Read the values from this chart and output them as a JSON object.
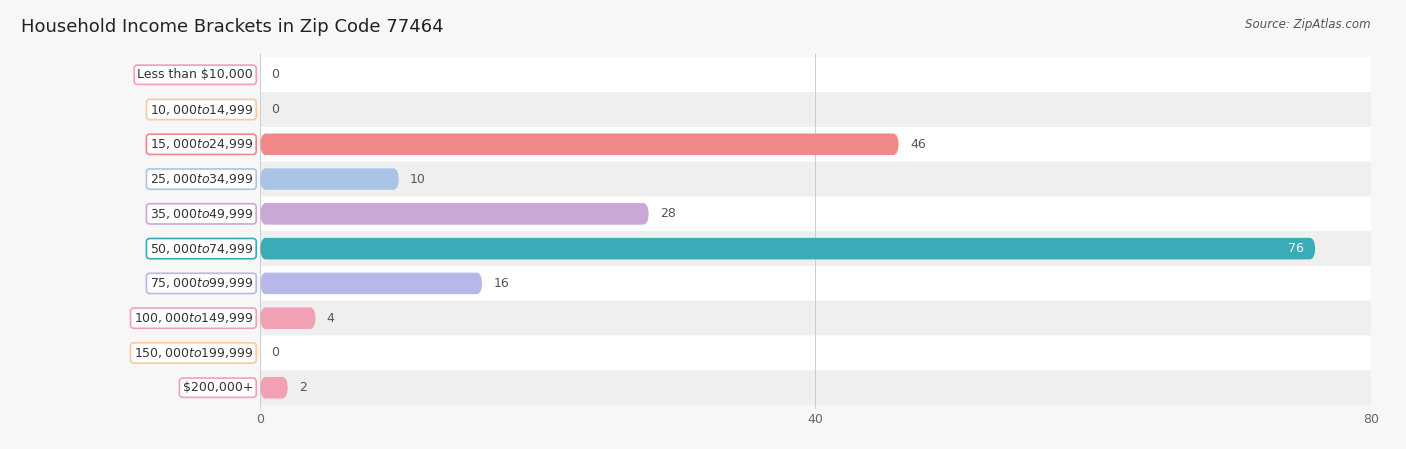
{
  "title": "Household Income Brackets in Zip Code 77464",
  "source": "Source: ZipAtlas.com",
  "categories": [
    "Less than $10,000",
    "$10,000 to $14,999",
    "$15,000 to $24,999",
    "$25,000 to $34,999",
    "$35,000 to $49,999",
    "$50,000 to $74,999",
    "$75,000 to $99,999",
    "$100,000 to $149,999",
    "$150,000 to $199,999",
    "$200,000+"
  ],
  "values": [
    0,
    0,
    46,
    10,
    28,
    76,
    16,
    4,
    0,
    2
  ],
  "bar_colors": [
    "#f2a0b4",
    "#f8c9a0",
    "#f08888",
    "#aac4e8",
    "#c9a8d8",
    "#3aacb8",
    "#b8b8e8",
    "#f2a0b4",
    "#f8c9a0",
    "#f2a0b4"
  ],
  "label_box_colors": [
    "#f2a0b4",
    "#f8c9a0",
    "#f08888",
    "#aac4e8",
    "#c9a8d8",
    "#3aacb8",
    "#b8b8e8",
    "#f2a0b4",
    "#f8c9a0",
    "#f2a0b4"
  ],
  "row_bg_colors": [
    "#ffffff",
    "#efefef"
  ],
  "plot_bg": "#ffffff",
  "fig_bg": "#f7f7f7",
  "xlim": [
    0,
    80
  ],
  "xticks": [
    0,
    40,
    80
  ],
  "title_fontsize": 13,
  "label_fontsize": 9,
  "value_fontsize": 9,
  "source_fontsize": 8.5
}
